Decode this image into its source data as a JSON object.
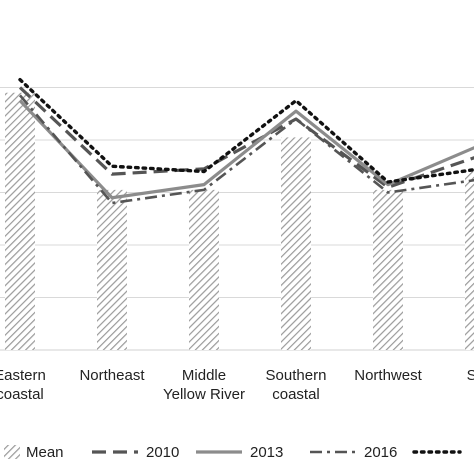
{
  "chart_data": {
    "type": "bar",
    "categories": [
      [
        "Eastern",
        "coastal"
      ],
      [
        "Northeast"
      ],
      [
        "Middle",
        "Yellow River"
      ],
      [
        "Southern",
        "coastal"
      ],
      [
        "Northwest"
      ],
      [
        "Sou"
      ]
    ],
    "ylim": [
      0,
      6
    ],
    "gridlines": [
      1,
      2,
      3,
      4,
      5
    ],
    "grid": true,
    "legend_position": "bottom",
    "series": [
      {
        "name": "Mean",
        "kind": "bar",
        "pattern": "diagonal-hatch",
        "color": "#999999",
        "values": [
          4.9,
          3.05,
          3.05,
          4.05,
          3.05,
          3.4
        ]
      },
      {
        "name": "2010",
        "kind": "line",
        "dash": "long-dash",
        "color": "#555555",
        "values": [
          5.0,
          3.35,
          3.45,
          4.4,
          3.1,
          3.7
        ]
      },
      {
        "name": "2013",
        "kind": "line",
        "dash": "solid",
        "color": "#8c8c8c",
        "values": [
          4.75,
          2.9,
          3.15,
          4.55,
          3.15,
          3.9
        ]
      },
      {
        "name": "2016",
        "kind": "line",
        "dash": "dash-dot",
        "color": "#555555",
        "values": [
          4.85,
          2.8,
          3.05,
          4.4,
          3.0,
          3.25
        ]
      },
      {
        "name": "",
        "kind": "line",
        "dash": "dotted",
        "color": "#111111",
        "values": [
          5.15,
          3.5,
          3.4,
          4.75,
          3.2,
          3.45
        ]
      }
    ]
  }
}
